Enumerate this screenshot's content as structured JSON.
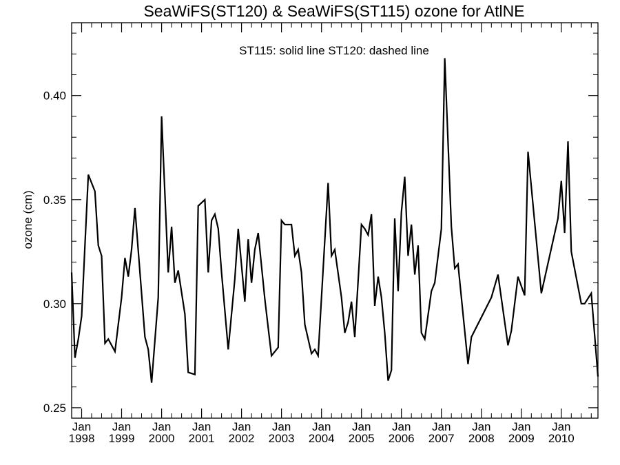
{
  "chart_data": {
    "type": "line",
    "title": "SeaWiFS(ST120) & SeaWiFS(ST115)  ozone for AtlNE",
    "annotation": "ST115: solid line   ST120: dashed line",
    "ylabel": "ozone (cm)",
    "xlabel": "",
    "xlim": [
      "1997-10",
      "2010-12"
    ],
    "ylim": [
      0.245,
      0.435
    ],
    "grid": false,
    "y_ticks": [
      {
        "value": 0.25,
        "label": "0.25"
      },
      {
        "value": 0.3,
        "label": "0.30"
      },
      {
        "value": 0.35,
        "label": "0.35"
      },
      {
        "value": 0.4,
        "label": "0.40"
      }
    ],
    "x_ticks": [
      {
        "date": "1998-01",
        "month": "Jan",
        "year": "1998"
      },
      {
        "date": "1999-01",
        "month": "Jan",
        "year": "1999"
      },
      {
        "date": "2000-01",
        "month": "Jan",
        "year": "2000"
      },
      {
        "date": "2001-01",
        "month": "Jan",
        "year": "2001"
      },
      {
        "date": "2002-01",
        "month": "Jan",
        "year": "2002"
      },
      {
        "date": "2003-01",
        "month": "Jan",
        "year": "2003"
      },
      {
        "date": "2004-01",
        "month": "Jan",
        "year": "2004"
      },
      {
        "date": "2005-01",
        "month": "Jan",
        "year": "2005"
      },
      {
        "date": "2006-01",
        "month": "Jan",
        "year": "2006"
      },
      {
        "date": "2007-01",
        "month": "Jan",
        "year": "2007"
      },
      {
        "date": "2008-01",
        "month": "Jan",
        "year": "2008"
      },
      {
        "date": "2009-01",
        "month": "Jan",
        "year": "2009"
      },
      {
        "date": "2010-01",
        "month": "Jan",
        "year": "2010"
      }
    ],
    "series": [
      {
        "color": "#000000",
        "style": "solid",
        "points": [
          [
            "1997-10",
            0.315
          ],
          [
            "1997-11",
            0.274
          ],
          [
            "1997-12",
            0.283
          ],
          [
            "1998-01",
            0.294
          ],
          [
            "1998-02",
            0.328
          ],
          [
            "1998-03",
            0.362
          ],
          [
            "1998-05",
            0.354
          ],
          [
            "1998-06",
            0.328
          ],
          [
            "1998-07",
            0.323
          ],
          [
            "1998-08",
            0.281
          ],
          [
            "1998-09",
            0.283
          ],
          [
            "1998-11",
            0.277
          ],
          [
            "1999-01",
            0.303
          ],
          [
            "1999-02",
            0.322
          ],
          [
            "1999-03",
            0.313
          ],
          [
            "1999-04",
            0.326
          ],
          [
            "1999-05",
            0.346
          ],
          [
            "1999-07",
            0.305
          ],
          [
            "1999-08",
            0.284
          ],
          [
            "1999-09",
            0.278
          ],
          [
            "1999-10",
            0.262
          ],
          [
            "1999-12",
            0.303
          ],
          [
            "2000-01",
            0.39
          ],
          [
            "2000-03",
            0.315
          ],
          [
            "2000-04",
            0.337
          ],
          [
            "2000-05",
            0.31
          ],
          [
            "2000-06",
            0.316
          ],
          [
            "2000-08",
            0.295
          ],
          [
            "2000-09",
            0.267
          ],
          [
            "2000-11",
            0.266
          ],
          [
            "2000-12",
            0.347
          ],
          [
            "2001-02",
            0.35
          ],
          [
            "2001-03",
            0.315
          ],
          [
            "2001-04",
            0.34
          ],
          [
            "2001-05",
            0.343
          ],
          [
            "2001-06",
            0.336
          ],
          [
            "2001-07",
            0.315
          ],
          [
            "2001-09",
            0.278
          ],
          [
            "2001-11",
            0.312
          ],
          [
            "2001-12",
            0.336
          ],
          [
            "2002-02",
            0.301
          ],
          [
            "2002-03",
            0.331
          ],
          [
            "2002-04",
            0.31
          ],
          [
            "2002-05",
            0.326
          ],
          [
            "2002-06",
            0.334
          ],
          [
            "2002-08",
            0.302
          ],
          [
            "2002-10",
            0.275
          ],
          [
            "2002-12",
            0.279
          ],
          [
            "2003-01",
            0.34
          ],
          [
            "2003-02",
            0.338
          ],
          [
            "2003-04",
            0.338
          ],
          [
            "2003-05",
            0.323
          ],
          [
            "2003-06",
            0.326
          ],
          [
            "2003-07",
            0.315
          ],
          [
            "2003-08",
            0.29
          ],
          [
            "2003-10",
            0.276
          ],
          [
            "2003-11",
            0.278
          ],
          [
            "2003-12",
            0.275
          ],
          [
            "2004-03",
            0.358
          ],
          [
            "2004-04",
            0.323
          ],
          [
            "2004-05",
            0.326
          ],
          [
            "2004-07",
            0.303
          ],
          [
            "2004-08",
            0.286
          ],
          [
            "2004-09",
            0.291
          ],
          [
            "2004-10",
            0.301
          ],
          [
            "2004-11",
            0.284
          ],
          [
            "2005-01",
            0.338
          ],
          [
            "2005-02",
            0.336
          ],
          [
            "2005-03",
            0.333
          ],
          [
            "2005-04",
            0.343
          ],
          [
            "2005-05",
            0.299
          ],
          [
            "2005-06",
            0.313
          ],
          [
            "2005-07",
            0.303
          ],
          [
            "2005-08",
            0.286
          ],
          [
            "2005-09",
            0.263
          ],
          [
            "2005-10",
            0.268
          ],
          [
            "2005-11",
            0.341
          ],
          [
            "2005-12",
            0.306
          ],
          [
            "2006-01",
            0.344
          ],
          [
            "2006-02",
            0.361
          ],
          [
            "2006-03",
            0.323
          ],
          [
            "2006-04",
            0.338
          ],
          [
            "2006-05",
            0.314
          ],
          [
            "2006-06",
            0.328
          ],
          [
            "2006-07",
            0.286
          ],
          [
            "2006-08",
            0.283
          ],
          [
            "2006-10",
            0.306
          ],
          [
            "2006-11",
            0.31
          ],
          [
            "2007-01",
            0.336
          ],
          [
            "2007-02",
            0.418
          ],
          [
            "2007-04",
            0.337
          ],
          [
            "2007-05",
            0.317
          ],
          [
            "2007-06",
            0.319
          ],
          [
            "2007-09",
            0.271
          ],
          [
            "2007-10",
            0.284
          ],
          [
            "2008-04",
            0.303
          ],
          [
            "2008-06",
            0.314
          ],
          [
            "2008-09",
            0.28
          ],
          [
            "2008-10",
            0.287
          ],
          [
            "2008-12",
            0.313
          ],
          [
            "2009-02",
            0.304
          ],
          [
            "2009-03",
            0.373
          ],
          [
            "2009-07",
            0.305
          ],
          [
            "2009-12",
            0.341
          ],
          [
            "2010-01",
            0.359
          ],
          [
            "2010-02",
            0.334
          ],
          [
            "2010-03",
            0.378
          ],
          [
            "2010-04",
            0.325
          ],
          [
            "2010-07",
            0.3
          ],
          [
            "2010-08",
            0.3
          ],
          [
            "2010-10",
            0.305
          ],
          [
            "2010-12",
            0.265
          ]
        ]
      }
    ]
  }
}
